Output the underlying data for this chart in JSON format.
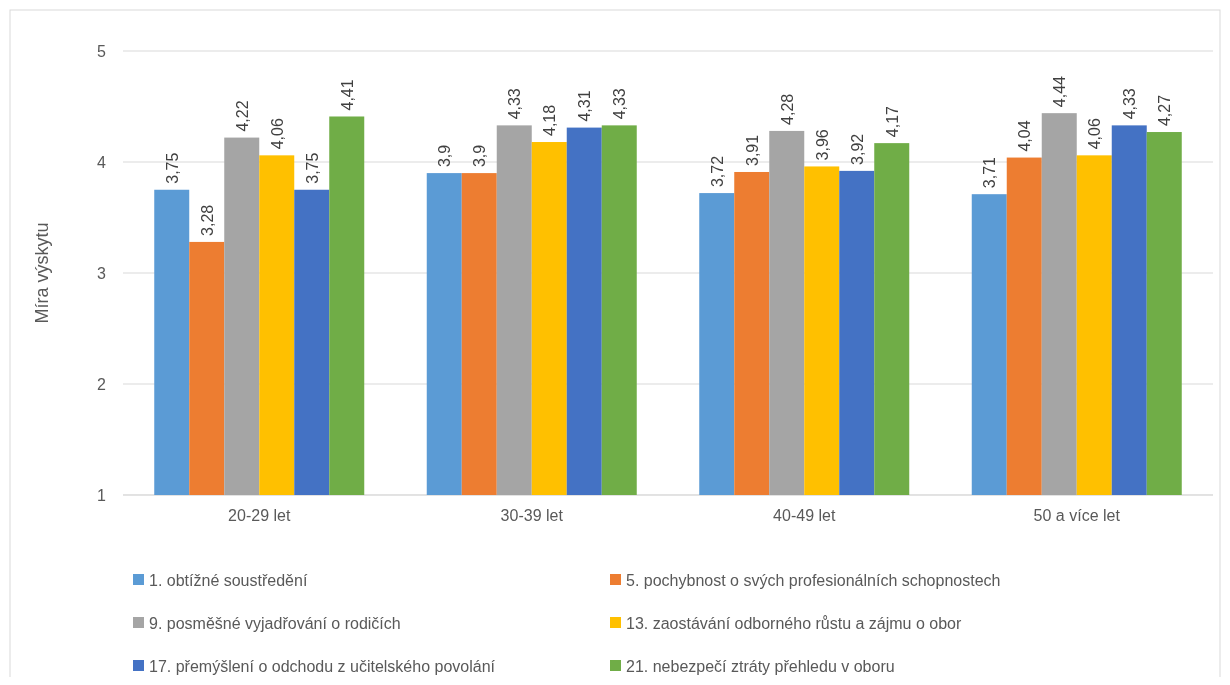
{
  "chart_data": {
    "type": "bar",
    "ylabel": "Míra výskytu",
    "categories": [
      "20-29 let",
      "30-39 let",
      "40-49 let",
      "50 a více let"
    ],
    "ylim": [
      1,
      5
    ],
    "yticks": [
      1,
      2,
      3,
      4,
      5
    ],
    "grid": "y",
    "legend": "bottom",
    "series": [
      {
        "name": "1. obtížné soustředění",
        "color": "#5b9bd5",
        "values": [
          3.75,
          3.9,
          3.72,
          3.71
        ],
        "value_labels": [
          "3,75",
          "3,9",
          "3,72",
          "3,71"
        ]
      },
      {
        "name": "5. pochybnost o svých profesionálních schopnostech",
        "color": "#ed7d31",
        "values": [
          3.28,
          3.9,
          3.91,
          4.04
        ],
        "value_labels": [
          "3,28",
          "3,9",
          "3,91",
          "4,04"
        ]
      },
      {
        "name": "9. posměšné vyjadřování o rodičích",
        "color": "#a5a5a5",
        "values": [
          4.22,
          4.33,
          4.28,
          4.44
        ],
        "value_labels": [
          "4,22",
          "4,33",
          "4,28",
          "4,44"
        ]
      },
      {
        "name": "13. zaostávání odborného růstu a zájmu o obor",
        "color": "#ffc000",
        "values": [
          4.06,
          4.18,
          3.96,
          4.06
        ],
        "value_labels": [
          "4,06",
          "4,18",
          "3,96",
          "4,06"
        ]
      },
      {
        "name": "17. přemýšlení o odchodu z učitelského povolání",
        "color": "#4472c4",
        "values": [
          3.75,
          4.31,
          3.92,
          4.33
        ],
        "value_labels": [
          "3,75",
          "4,31",
          "3,92",
          "4,33"
        ]
      },
      {
        "name": "21. nebezpečí ztráty přehledu v oboru",
        "color": "#70ad47",
        "values": [
          4.41,
          4.33,
          4.17,
          4.27
        ],
        "value_labels": [
          "4,41",
          "4,33",
          "4,17",
          "4,27"
        ]
      }
    ]
  }
}
